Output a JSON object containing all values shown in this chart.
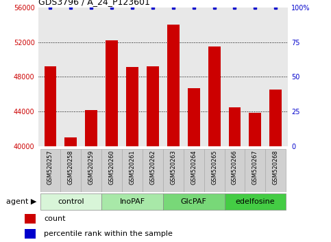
{
  "title": "GDS3796 / A_24_P123601",
  "samples": [
    "GSM520257",
    "GSM520258",
    "GSM520259",
    "GSM520260",
    "GSM520261",
    "GSM520262",
    "GSM520263",
    "GSM520264",
    "GSM520265",
    "GSM520266",
    "GSM520267",
    "GSM520268"
  ],
  "counts": [
    49200,
    41000,
    44200,
    52200,
    49100,
    49200,
    54000,
    46700,
    51500,
    44500,
    43900,
    46500
  ],
  "percentile": [
    100,
    100,
    100,
    100,
    100,
    100,
    100,
    100,
    100,
    100,
    100,
    100
  ],
  "bar_color": "#cc0000",
  "dot_color": "#0000cc",
  "ylim_left": [
    40000,
    56000
  ],
  "ylim_right": [
    0,
    100
  ],
  "yticks_left": [
    40000,
    44000,
    48000,
    52000,
    56000
  ],
  "yticks_right": [
    0,
    25,
    50,
    75,
    100
  ],
  "ytick_labels_right": [
    "0",
    "25",
    "50",
    "75",
    "100%"
  ],
  "groups": [
    {
      "label": "control",
      "start": 0,
      "end": 3,
      "color": "#d8f5d8"
    },
    {
      "label": "InoPAF",
      "start": 3,
      "end": 6,
      "color": "#a8e8a8"
    },
    {
      "label": "GlcPAF",
      "start": 6,
      "end": 9,
      "color": "#78d878"
    },
    {
      "label": "edelfosine",
      "start": 9,
      "end": 12,
      "color": "#44cc44"
    }
  ],
  "agent_label": "agent",
  "legend_count_label": "count",
  "legend_percentile_label": "percentile rank within the sample",
  "plot_bg": "#e8e8e8",
  "sample_box_color": "#d0d0d0",
  "tick_color_left": "#cc0000",
  "tick_color_right": "#0000cc",
  "title_fontsize": 9,
  "axis_fontsize": 7,
  "sample_fontsize": 6,
  "group_fontsize": 8,
  "legend_fontsize": 8
}
